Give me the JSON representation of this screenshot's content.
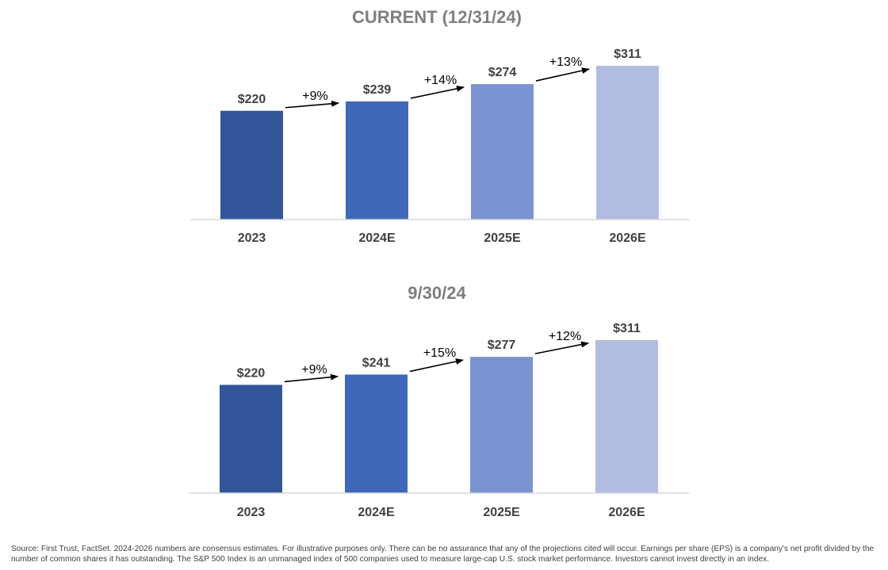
{
  "chart_data": [
    {
      "type": "bar",
      "title": "CURRENT (12/31/24)",
      "categories": [
        "2023",
        "2024E",
        "2025E",
        "2026E"
      ],
      "values": [
        220,
        239,
        274,
        311
      ],
      "value_labels": [
        "$220",
        "$239",
        "$274",
        "$311"
      ],
      "growth_labels": [
        "+9%",
        "+14%",
        "+13%"
      ],
      "colors": [
        "#325699",
        "#3f69b8",
        "#7b93d0",
        "#b1bce0"
      ],
      "ylim": [
        0,
        311
      ],
      "grid": false,
      "legend": "none"
    },
    {
      "type": "bar",
      "title": "9/30/24",
      "categories": [
        "2023",
        "2024E",
        "2025E",
        "2026E"
      ],
      "values": [
        220,
        241,
        277,
        311
      ],
      "value_labels": [
        "$220",
        "$241",
        "$277",
        "$311"
      ],
      "growth_labels": [
        "+9%",
        "+15%",
        "+12%"
      ],
      "colors": [
        "#325699",
        "#3f69b8",
        "#7b93d0",
        "#b1bce0"
      ],
      "ylim": [
        0,
        311
      ],
      "grid": false,
      "legend": "none"
    }
  ],
  "footnote": "Source: First Trust, FactSet. 2024-2026 numbers are consensus estimates. For illustrative purposes only. There can be no assurance that any of the projections cited will occur. Earnings per share (EPS) is a company's net profit divided by the number of common shares it has outstanding. The S&P 500 Index is an unmanaged index of 500 companies used to measure large-cap U.S. stock market performance. Investors cannot invest directly in an index."
}
